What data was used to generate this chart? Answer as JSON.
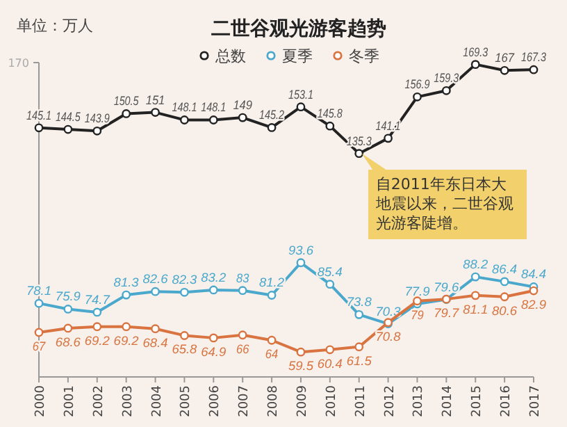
{
  "chart_data": {
    "type": "line",
    "title": "二世谷观光游客趋势",
    "ylabel": "单位：万人",
    "categories": [
      "2000",
      "2001",
      "2002",
      "2003",
      "2004",
      "2005",
      "2006",
      "2007",
      "2008",
      "2009",
      "2010",
      "2011",
      "2012",
      "2013",
      "2014",
      "2015",
      "2016",
      "2017"
    ],
    "series": [
      {
        "name": "总数",
        "color": "#222222",
        "values": [
          145.1,
          144.5,
          143.9,
          150.5,
          151,
          148.1,
          148.1,
          149,
          145.2,
          153.1,
          145.8,
          135.3,
          141.1,
          156.9,
          159.3,
          169.3,
          167,
          167.3
        ]
      },
      {
        "name": "夏季",
        "color": "#4aa8cc",
        "values": [
          78.1,
          75.9,
          74.7,
          81.3,
          82.6,
          82.3,
          83.2,
          83,
          81.2,
          93.6,
          85.4,
          73.8,
          70.3,
          77.9,
          79.6,
          88.2,
          86.4,
          84.4
        ]
      },
      {
        "name": "冬季",
        "color": "#d9733f",
        "values": [
          67,
          68.6,
          69.2,
          69.2,
          68.4,
          65.8,
          64.9,
          66,
          64,
          59.5,
          60.4,
          61.5,
          70.8,
          79,
          79.7,
          81.1,
          80.6,
          82.9
        ]
      }
    ],
    "ylim": [
      50,
      170
    ],
    "legend": "top",
    "marker": "circle",
    "line_style": "solid",
    "data_labels": true,
    "annotations": [
      {
        "text": "自2011年东日本大地震以来，二世谷观光游客陡增。",
        "x": "2011",
        "y": 135.3
      },
      "170"
    ]
  }
}
